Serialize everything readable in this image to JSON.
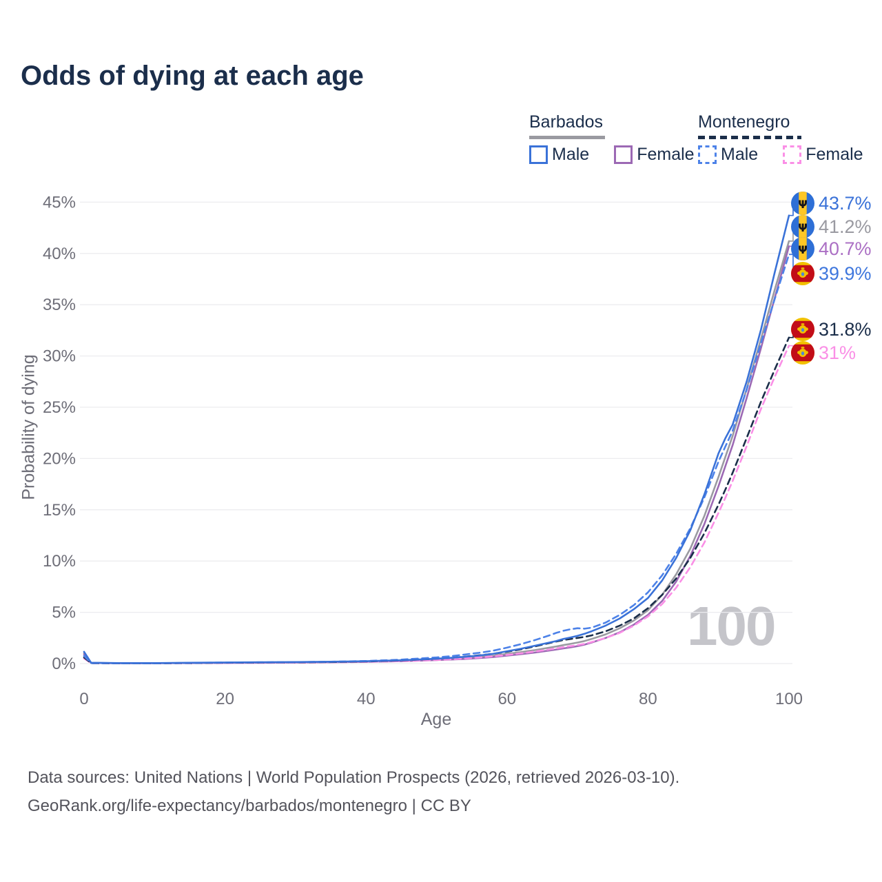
{
  "header": {
    "title": "Odds of dying at each age"
  },
  "legend": {
    "groups": [
      {
        "country": "Barbados",
        "line_style": "solid",
        "underline_color": "#9a9aa1",
        "items": [
          {
            "label": "Male",
            "color": "#3a72d8",
            "dashed": false
          },
          {
            "label": "Female",
            "color": "#9c69b4",
            "dashed": false
          }
        ]
      },
      {
        "country": "Montenegro",
        "line_style": "dashed",
        "underline_color": "#1b2e4a",
        "items": [
          {
            "label": "Male",
            "color": "#4d82e8",
            "dashed": true
          },
          {
            "label": "Female",
            "color": "#fa8fe6",
            "dashed": true
          }
        ]
      }
    ]
  },
  "chart_data": {
    "type": "line",
    "title": "Odds of dying at each age",
    "xlabel": "Age",
    "ylabel": "Probability of dying",
    "xlim": [
      0,
      100
    ],
    "ylim": [
      0,
      45
    ],
    "x_ticks": [
      0,
      20,
      40,
      60,
      80,
      100
    ],
    "y_ticks": [
      {
        "value": 0,
        "label": "0%"
      },
      {
        "value": 5,
        "label": "5%"
      },
      {
        "value": 10,
        "label": "10%"
      },
      {
        "value": 15,
        "label": "15%"
      },
      {
        "value": 20,
        "label": "20%"
      },
      {
        "value": 25,
        "label": "25%"
      },
      {
        "value": 30,
        "label": "30%"
      },
      {
        "value": 35,
        "label": "35%"
      },
      {
        "value": 40,
        "label": "40%"
      },
      {
        "value": 45,
        "label": "45%"
      }
    ],
    "grid": true,
    "legend_position": "top-right",
    "watermark": "100",
    "ages": [
      0,
      1,
      5,
      10,
      15,
      20,
      25,
      30,
      35,
      40,
      45,
      50,
      52,
      54,
      56,
      58,
      60,
      62,
      64,
      66,
      67,
      68,
      69,
      70,
      71,
      72,
      74,
      76,
      78,
      80,
      82,
      84,
      86,
      88,
      90,
      91,
      92,
      94,
      96,
      98,
      100
    ],
    "series": [
      {
        "name": "Barbados Male",
        "country": "Barbados",
        "sex": "male",
        "color": "#3a72d8",
        "dashed": false,
        "flag": "barbados",
        "end_label": "43.7%",
        "end_label_color": "#3a72d8",
        "end_value": 43.7,
        "values": [
          1.15,
          0.08,
          0.05,
          0.05,
          0.08,
          0.11,
          0.13,
          0.15,
          0.18,
          0.23,
          0.32,
          0.48,
          0.56,
          0.66,
          0.78,
          0.95,
          1.2,
          1.45,
          1.75,
          2.05,
          2.2,
          2.4,
          2.55,
          2.7,
          2.9,
          3.15,
          3.7,
          4.4,
          5.3,
          6.4,
          8.1,
          10.3,
          13.0,
          16.5,
          20.5,
          22.0,
          23.3,
          27.5,
          32.5,
          38.2,
          43.7
        ]
      },
      {
        "name": "Barbados Both Sexes",
        "country": "Barbados",
        "sex": "both",
        "color": "#9a9aa1",
        "dashed": false,
        "flag": "barbados",
        "end_label": "41.2%",
        "end_label_color": "#9a9aa1",
        "end_value": 41.2,
        "values": [
          1.0,
          0.07,
          0.04,
          0.04,
          0.06,
          0.08,
          0.1,
          0.12,
          0.15,
          0.19,
          0.27,
          0.4,
          0.46,
          0.54,
          0.63,
          0.75,
          0.95,
          1.12,
          1.32,
          1.55,
          1.67,
          1.8,
          1.92,
          2.05,
          2.2,
          2.4,
          2.85,
          3.45,
          4.2,
          5.2,
          6.7,
          8.7,
          11.2,
          14.4,
          18.2,
          20.2,
          22.2,
          26.8,
          31.6,
          36.5,
          41.2
        ]
      },
      {
        "name": "Barbados Female",
        "country": "Barbados",
        "sex": "female",
        "color": "#9c69b4",
        "dashed": false,
        "flag": "barbados",
        "end_label": "40.7%",
        "end_label_color": "#ab6fc4",
        "end_value": 40.7,
        "values": [
          0.9,
          0.06,
          0.04,
          0.04,
          0.05,
          0.06,
          0.08,
          0.1,
          0.13,
          0.17,
          0.23,
          0.34,
          0.39,
          0.45,
          0.53,
          0.63,
          0.78,
          0.92,
          1.08,
          1.27,
          1.37,
          1.48,
          1.58,
          1.7,
          1.85,
          2.05,
          2.5,
          3.05,
          3.8,
          4.75,
          6.1,
          8.0,
          10.5,
          13.6,
          17.3,
          19.3,
          21.3,
          25.9,
          30.7,
          35.7,
          40.7
        ]
      },
      {
        "name": "Montenegro Male",
        "country": "Montenegro",
        "sex": "male",
        "color": "#4d82e8",
        "dashed": true,
        "flag": "montenegro",
        "end_label": "39.9%",
        "end_label_color": "#3f77dd",
        "end_value": 39.9,
        "values": [
          0.75,
          0.05,
          0.03,
          0.03,
          0.06,
          0.1,
          0.12,
          0.14,
          0.18,
          0.25,
          0.38,
          0.6,
          0.72,
          0.88,
          1.05,
          1.25,
          1.55,
          1.9,
          2.3,
          2.75,
          3.0,
          3.2,
          3.35,
          3.45,
          3.4,
          3.5,
          4.0,
          4.75,
          5.7,
          6.95,
          8.6,
          10.7,
          13.2,
          16.2,
          19.7,
          21.2,
          22.7,
          26.7,
          31.2,
          35.6,
          39.9
        ]
      },
      {
        "name": "Montenegro Both Sexes",
        "country": "Montenegro",
        "sex": "both",
        "color": "#1b2e4a",
        "dashed": true,
        "flag": "montenegro",
        "end_label": "31.8%",
        "end_label_color": "#1b2e4a",
        "end_value": 31.8,
        "values": [
          0.6,
          0.04,
          0.03,
          0.03,
          0.05,
          0.08,
          0.1,
          0.12,
          0.15,
          0.2,
          0.3,
          0.47,
          0.56,
          0.67,
          0.8,
          0.95,
          1.15,
          1.4,
          1.68,
          2.0,
          2.15,
          2.3,
          2.4,
          2.5,
          2.6,
          2.75,
          3.15,
          3.7,
          4.4,
          5.4,
          6.7,
          8.3,
          10.3,
          12.7,
          15.5,
          17.0,
          18.6,
          22.0,
          25.5,
          28.7,
          31.8
        ]
      },
      {
        "name": "Montenegro Female",
        "country": "Montenegro",
        "sex": "female",
        "color": "#fa8fe6",
        "dashed": true,
        "flag": "montenegro",
        "end_label": "31%",
        "end_label_color": "#fa8fe6",
        "end_value": 31.0,
        "values": [
          0.5,
          0.04,
          0.02,
          0.02,
          0.04,
          0.05,
          0.07,
          0.09,
          0.12,
          0.16,
          0.23,
          0.35,
          0.42,
          0.5,
          0.59,
          0.7,
          0.85,
          1.0,
          1.18,
          1.38,
          1.48,
          1.6,
          1.7,
          1.8,
          1.92,
          2.1,
          2.5,
          3.0,
          3.7,
          4.6,
          5.8,
          7.4,
          9.4,
          11.8,
          14.7,
          16.2,
          17.8,
          21.2,
          24.8,
          28.0,
          31.0
        ]
      }
    ]
  },
  "footer": {
    "line1": "Data sources: United Nations | World Population Prospects (2026, retrieved 2026-03-10).",
    "line2": "GeoRank.org/life-expectancy/barbados/montenegro | CC BY"
  }
}
